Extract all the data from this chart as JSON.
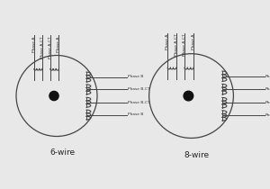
{
  "background_color": "#e8e8e8",
  "motor_bg": "#ffffff",
  "title_6wire": "6-wire",
  "title_8wire": "8-wire",
  "circle_color": "#444444",
  "coil_color": "#444444",
  "wire_color": "#444444",
  "dot_color": "#111111",
  "text_color": "#333333",
  "label_6wire_right": [
    "Phase B",
    "Phase B-CT",
    "Phase B-CT",
    "Phase B"
  ],
  "label_8wire_right": [
    "Phase",
    "Phase",
    "Phase",
    "Phase"
  ],
  "label_top": [
    "Phase A",
    "Phase A-CT",
    "Phase A-CT",
    "Phase A"
  ],
  "figsize": [
    3.0,
    2.1
  ],
  "dpi": 100
}
